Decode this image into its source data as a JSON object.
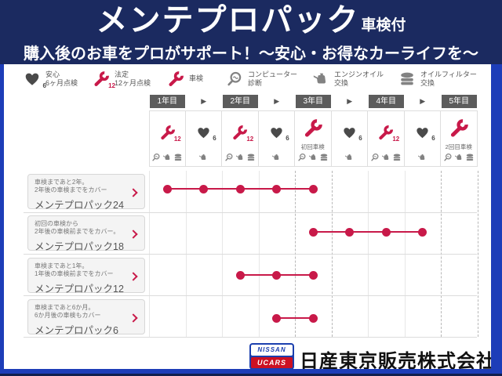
{
  "header": {
    "title": "メンテプロパック",
    "title_suffix": "車検付",
    "subtitle": "購入後のお車をプロがサポート！～安心・お得なカーライフを～"
  },
  "colors": {
    "navy": "#1b2a60",
    "border_blue": "#1d3db8",
    "red": "#c81949",
    "icon_dark_gray": "#4a4a4a",
    "icon_mid_gray": "#828282",
    "year_box_gray": "#5c5c5c"
  },
  "legend": [
    {
      "icon": "heart-6",
      "lines": [
        "安心",
        "6ヶ月点検"
      ]
    },
    {
      "icon": "wrench-12",
      "lines": [
        "法定",
        "12ヶ月点検"
      ]
    },
    {
      "icon": "wrench",
      "lines": [
        "車検"
      ]
    },
    {
      "icon": "diagnosis-magnifier",
      "lines": [
        "コンピューター",
        "診断"
      ]
    },
    {
      "icon": "oil-can",
      "lines": [
        "エンジンオイル",
        "交換"
      ]
    },
    {
      "icon": "oil-filter",
      "lines": [
        "オイルフィルター",
        "交換"
      ]
    }
  ],
  "timeline": {
    "years": [
      "1年目",
      "2年目",
      "3年目",
      "4年目",
      "5年目"
    ],
    "arrow": "▶",
    "columns": [
      {
        "top_icon": "wrench-12",
        "label": "",
        "bottom_icons": [
          "diagnosis-magnifier",
          "oil-can",
          "oil-filter"
        ]
      },
      {
        "top_icon": "heart-6",
        "label": "",
        "bottom_icons": [
          "oil-can"
        ]
      },
      {
        "top_icon": "wrench-12",
        "label": "",
        "bottom_icons": [
          "diagnosis-magnifier",
          "oil-can",
          "oil-filter"
        ]
      },
      {
        "top_icon": "heart-6",
        "label": "",
        "bottom_icons": [
          "oil-can"
        ]
      },
      {
        "top_icon": "wrench",
        "label": "初回車検",
        "bottom_icons": [
          "diagnosis-magnifier",
          "oil-can",
          "oil-filter"
        ]
      },
      {
        "top_icon": "heart-6",
        "label": "",
        "bottom_icons": [
          "oil-can"
        ]
      },
      {
        "top_icon": "wrench-12",
        "label": "",
        "bottom_icons": [
          "diagnosis-magnifier",
          "oil-can",
          "oil-filter"
        ]
      },
      {
        "top_icon": "heart-6",
        "label": "",
        "bottom_icons": [
          "oil-can"
        ]
      },
      {
        "top_icon": "wrench",
        "label": "2回目車検",
        "bottom_icons": [
          "diagnosis-magnifier",
          "oil-can",
          "oil-filter"
        ]
      }
    ]
  },
  "plans": [
    {
      "desc1": "車検まであと2年。",
      "desc2": "2年後の車検までをカバー",
      "name": "メンテプロパック24",
      "columns": [
        1,
        2,
        3,
        4,
        5
      ]
    },
    {
      "desc1": "初回の車検から",
      "desc2": "2年後の車検前までをカバー。",
      "name": "メンテプロパック18",
      "columns": [
        5,
        6,
        7,
        8
      ]
    },
    {
      "desc1": "車検まであと1年。",
      "desc2": "1年後の車検前までをカバー",
      "name": "メンテプロパック12",
      "columns": [
        3,
        4,
        5
      ]
    },
    {
      "desc1": "車検まであと6か月。",
      "desc2": "6か月後の車検もカバー",
      "name": "メンテプロパック6",
      "columns": [
        4,
        5
      ]
    }
  ],
  "footer": {
    "logo_top": "NISSAN",
    "logo_bottom": "UCARS",
    "company": "日産東京販売株式会社"
  }
}
